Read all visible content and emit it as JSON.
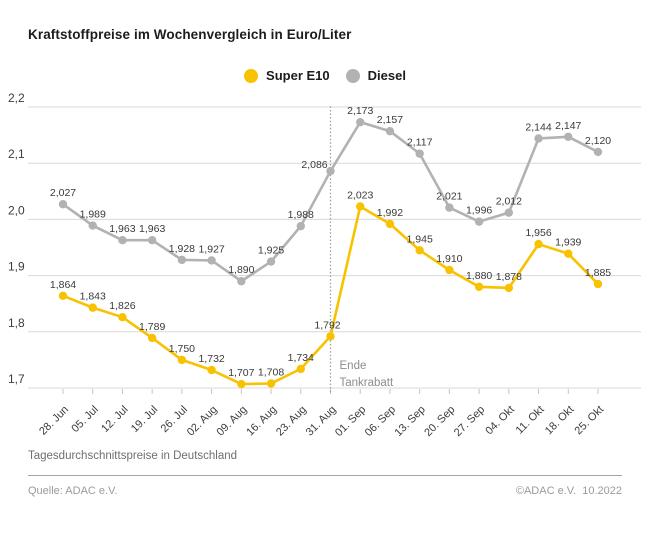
{
  "header": {
    "title": "Kraftstoffpreise im Wochenvergleich in Euro/Liter"
  },
  "chart_data": {
    "type": "line",
    "title": "Kraftstoffpreise im Wochenvergleich in Euro/Liter",
    "xlabel": "",
    "ylabel": "Euro/Liter",
    "grid": true,
    "legend_position": "top-center",
    "categories": [
      "28. Jun",
      "05. Jul",
      "12. Jul",
      "19. Jul",
      "26. Jul",
      "02. Aug",
      "09. Aug",
      "16. Aug",
      "23. Aug",
      "31. Aug",
      "01. Sep",
      "06. Sep",
      "13. Sep",
      "20. Sep",
      "27. Sep",
      "04. Okt",
      "11. Okt",
      "18. Okt",
      "25. Okt"
    ],
    "series": [
      {
        "name": "Super E10",
        "color": "#F9C200",
        "values": [
          1.864,
          1.843,
          1.826,
          1.789,
          1.75,
          1.732,
          1.707,
          1.708,
          1.734,
          1.792,
          2.023,
          1.992,
          1.945,
          1.91,
          1.88,
          1.878,
          1.956,
          1.939,
          1.885
        ]
      },
      {
        "name": "Diesel",
        "color": "#B2B2B2",
        "values": [
          2.027,
          1.989,
          1.963,
          1.963,
          1.928,
          1.927,
          1.89,
          1.925,
          1.988,
          2.086,
          2.173,
          2.157,
          2.117,
          2.021,
          1.996,
          2.012,
          2.144,
          2.147,
          2.12
        ]
      }
    ],
    "y_axis": {
      "ticks": [
        "2,2",
        "2,1",
        "2,0",
        "1,9",
        "1,8",
        "1,7"
      ],
      "min": 1.7,
      "max": 2.2
    },
    "annotation": {
      "lines": [
        "Ende",
        "Tankrabatt"
      ],
      "at_category": "31. Aug"
    }
  },
  "footer": {
    "note": "Tagesdurchschnittspreise in Deutschland",
    "source_left": "Quelle: ADAC e.V.",
    "source_right": "©ADAC e.V.  10.2022"
  },
  "colors": {
    "super_e10": "#F9C200",
    "diesel": "#B2B2B2",
    "grid": "#D8D8D8",
    "tick": "#C4C4C4",
    "value_label": "#3A3A3A",
    "axis_label": "#3C3C3C",
    "annotation": "#8C8C8C",
    "dotted_line": "#9A9A9A"
  }
}
